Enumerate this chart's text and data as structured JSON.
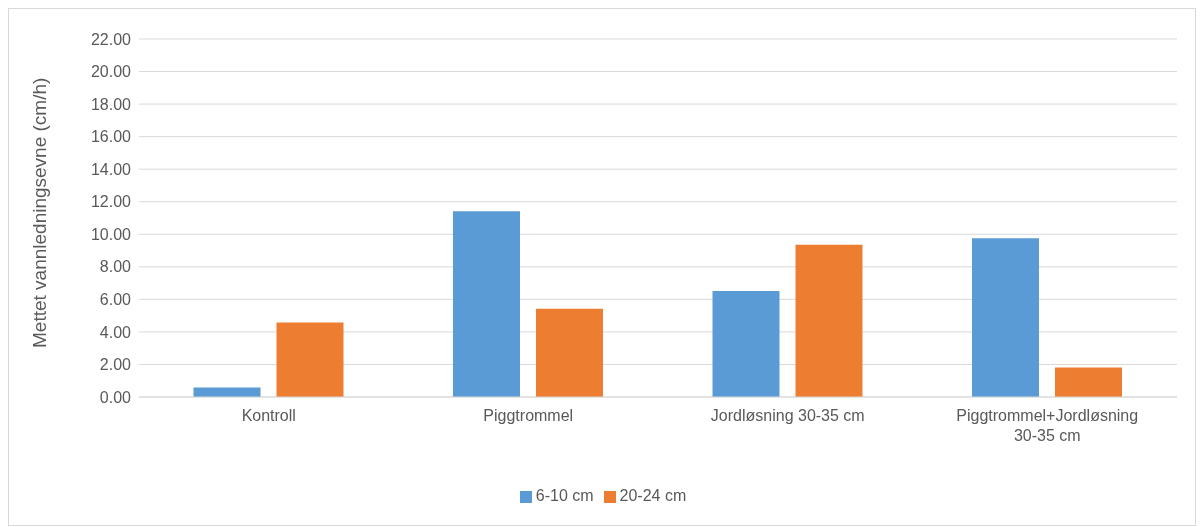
{
  "chart_data": {
    "type": "bar",
    "ylabel": "Mettet vannledningsevne  (cm/h)",
    "categories": [
      "Kontroll",
      "Piggtrommel",
      "Jordløsning 30-35 cm",
      "Piggtrommel+Jordløsning 30-35 cm"
    ],
    "series": [
      {
        "name": "6-10 cm",
        "color": "#5b9bd5",
        "values": [
          0.58,
          11.42,
          6.52,
          9.75
        ]
      },
      {
        "name": "20-24 cm",
        "color": "#ed7d31",
        "values": [
          4.58,
          5.42,
          9.36,
          1.82
        ]
      }
    ],
    "ylim": [
      0,
      22
    ],
    "yticks": [
      {
        "value": 0,
        "label": "0.00"
      },
      {
        "value": 2,
        "label": "2.00"
      },
      {
        "value": 4,
        "label": "4.00"
      },
      {
        "value": 6,
        "label": "6.00"
      },
      {
        "value": 8,
        "label": "8.00"
      },
      {
        "value": 10,
        "label": "10.00"
      },
      {
        "value": 12,
        "label": "12.00"
      },
      {
        "value": 14,
        "label": "14.00"
      },
      {
        "value": 16,
        "label": "16.00"
      },
      {
        "value": 18,
        "label": "18.00"
      },
      {
        "value": 20,
        "label": "20.00"
      },
      {
        "value": 22,
        "label": "22.00"
      }
    ],
    "grid": "y",
    "legend": "bottom"
  }
}
